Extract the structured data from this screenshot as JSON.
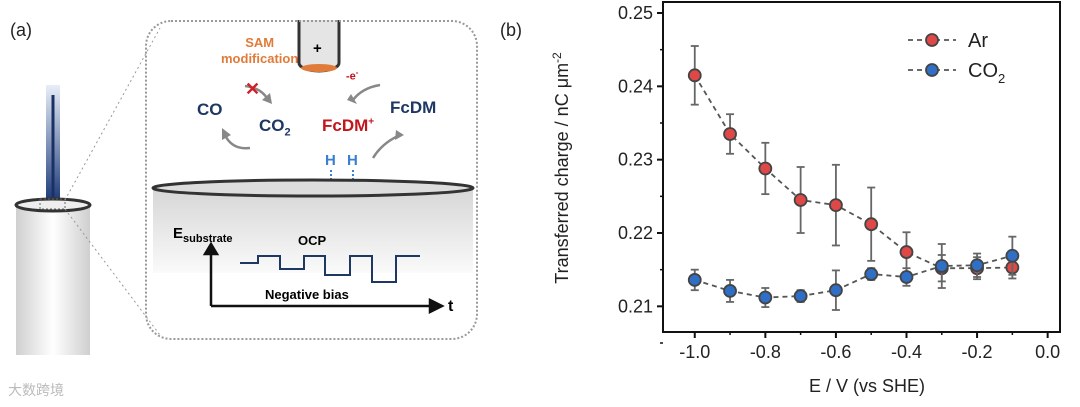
{
  "panel_a": {
    "label": "(a)",
    "sam_line1": "SAM",
    "sam_line2": "modification",
    "tip_sign": "+",
    "co": "CO",
    "co2_main": "CO",
    "co2_sub": "2",
    "electron": "-e",
    "electron_sup": "-",
    "fcdm_plus": "FcDM",
    "fcdm_plus_sup": "+",
    "fcdm": "FcDM",
    "h1": "H",
    "h2": "H",
    "e_main": "E",
    "e_sub": "substrate",
    "ocp": "OCP",
    "negative_bias": "Negative bias",
    "t_axis": "t"
  },
  "panel_b_label": "(b)",
  "watermark": "大数跨境",
  "chart_data": {
    "type": "scatter",
    "title": "",
    "xlabel": "E / V (vs SHE)",
    "ylabel": "Transferred charge / nC μm",
    "ylabel_sup": "-2",
    "xlim": [
      -1.09,
      0.035
    ],
    "ylim": [
      0.2065,
      0.2515
    ],
    "xticks": [
      -1.0,
      -0.8,
      -0.6,
      -0.4,
      -0.2,
      0.0
    ],
    "xtick_labels": [
      "-1.0",
      "-0.8",
      "-0.6",
      "-0.4",
      "-0.2",
      "0.0"
    ],
    "yticks": [
      0.21,
      0.22,
      0.23,
      0.24,
      0.25
    ],
    "ytick_labels": [
      "0.21",
      "0.22",
      "0.23",
      "0.24",
      "0.25"
    ],
    "legend_placement": "top-right",
    "x": [
      -1.0,
      -0.9,
      -0.8,
      -0.7,
      -0.6,
      -0.5,
      -0.4,
      -0.3,
      -0.2,
      -0.1
    ],
    "series": [
      {
        "name": "Ar",
        "legend_main": "Ar",
        "legend_sub": "",
        "color": "#e04848",
        "values": [
          0.2415,
          0.2335,
          0.2288,
          0.2245,
          0.2238,
          0.2212,
          0.2174,
          0.2152,
          0.2152,
          0.2153
        ],
        "errors": [
          0.004,
          0.0027,
          0.0035,
          0.0045,
          0.0055,
          0.005,
          0.0027,
          0.0018,
          0.0015,
          0.0015
        ]
      },
      {
        "name": "CO2",
        "legend_main": "CO",
        "legend_sub": "2",
        "color": "#2f6fc6",
        "values": [
          0.2136,
          0.2121,
          0.2112,
          0.2114,
          0.2122,
          0.2144,
          0.214,
          0.2155,
          0.2156,
          0.2169
        ],
        "errors": [
          0.0014,
          0.0015,
          0.0013,
          0.0008,
          0.0027,
          0.0008,
          0.0012,
          0.003,
          0.0016,
          0.0026
        ]
      }
    ]
  }
}
